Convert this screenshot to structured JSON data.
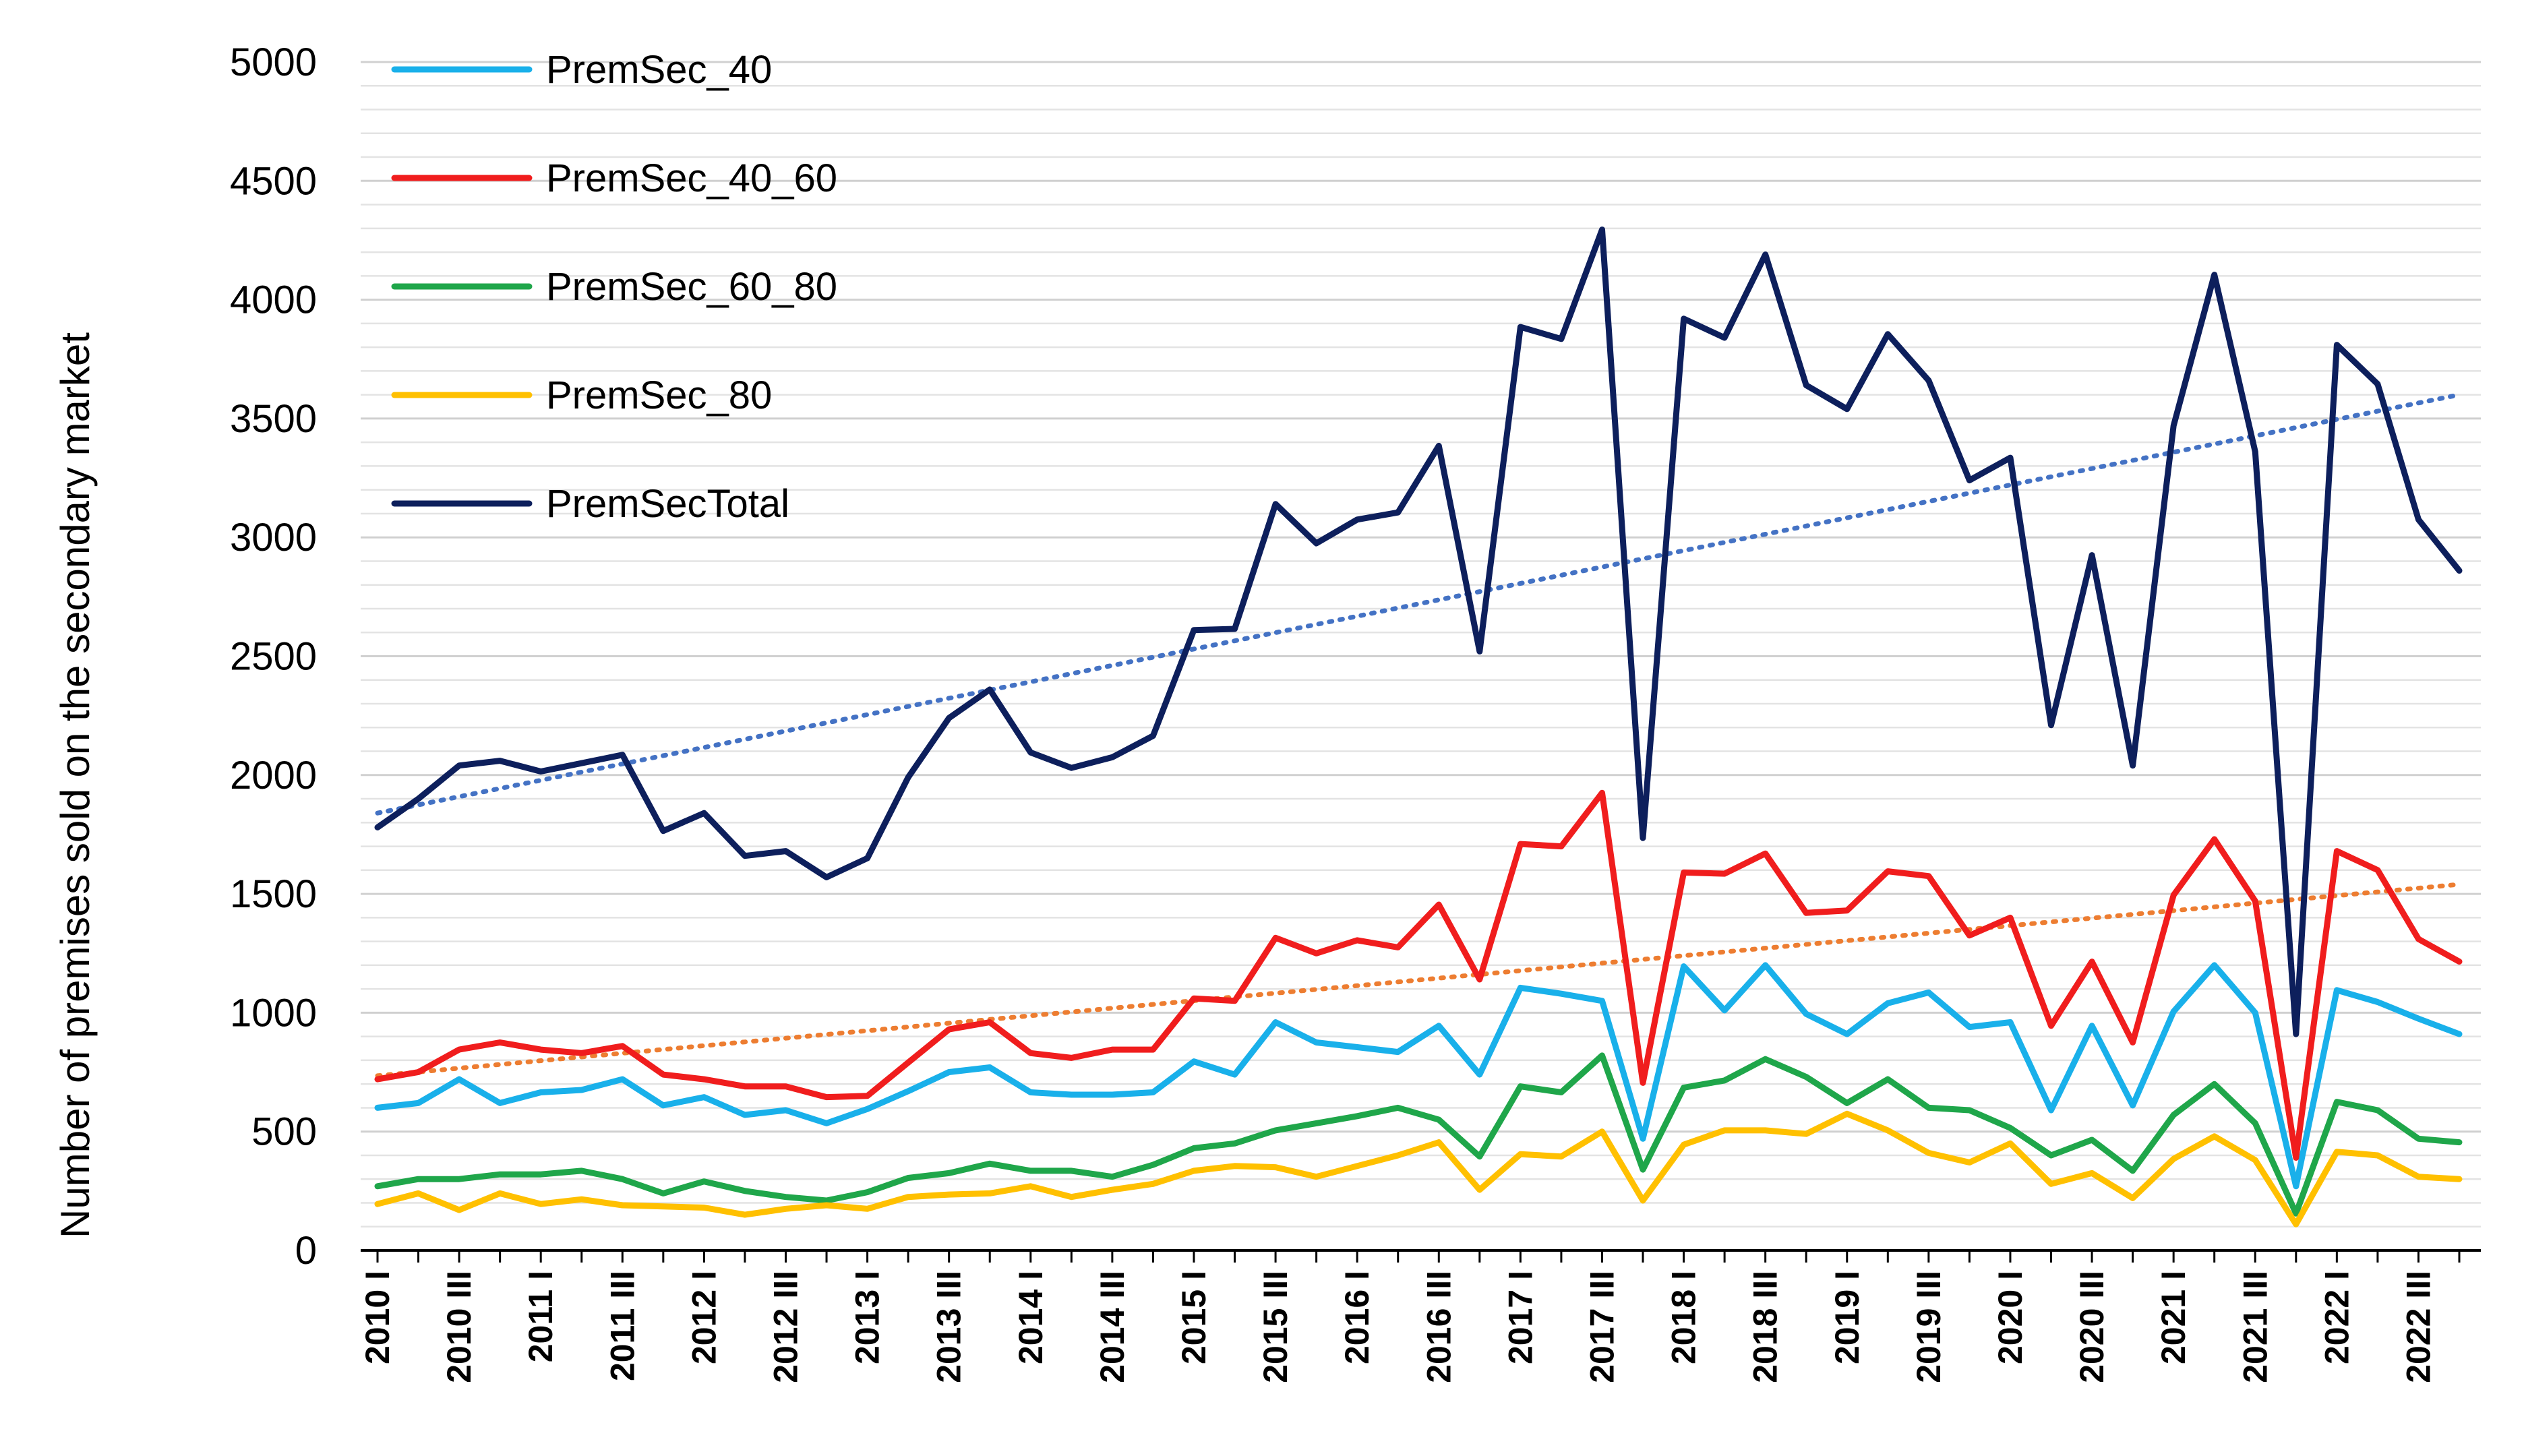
{
  "chart_data": {
    "type": "line",
    "title": "",
    "xlabel": "",
    "ylabel": "Number of premises sold on the secondary market",
    "ylim": [
      0,
      5000
    ],
    "ytick_values": [
      0,
      500,
      1000,
      1500,
      2000,
      2500,
      3000,
      3500,
      4000,
      4500,
      5000
    ],
    "grid": true,
    "legend_position": "top-left",
    "x": [
      "2010 I",
      "2010 II",
      "2010 III",
      "2010 IV",
      "2011 I",
      "2011 II",
      "2011 III",
      "2011 IV",
      "2012 I",
      "2012 II",
      "2012 III",
      "2012 IV",
      "2013 I",
      "2013 II",
      "2013 III",
      "2013 IV",
      "2014 I",
      "2014 II",
      "2014 III",
      "2014 IV",
      "2015 I",
      "2015 II",
      "2015 III",
      "2015 IV",
      "2016 I",
      "2016 II",
      "2016 III",
      "2016 IV",
      "2017 I",
      "2017 II",
      "2017 III",
      "2017 IV",
      "2018 I",
      "2018 II",
      "2018 III",
      "2018 IV",
      "2019 I",
      "2019 II",
      "2019 III",
      "2019 IV",
      "2020 I",
      "2020 II",
      "2020 III",
      "2020 IV",
      "2021 I",
      "2021 II",
      "2021 III",
      "2021 IV",
      "2022 I",
      "2022 II",
      "2022 III",
      "2022 IV"
    ],
    "tick_labels": [
      "2010 I",
      "2010 III",
      "2011 I",
      "2011 III",
      "2012 I",
      "2012 III",
      "2013 I",
      "2013 III",
      "2014 I",
      "2014 III",
      "2015 I",
      "2015 III",
      "2016 I",
      "2016 III",
      "2017 I",
      "2017 III",
      "2018 I",
      "2018 III",
      "2019 I",
      "2019 III",
      "2020 I",
      "2020 III",
      "2021 I",
      "2021 III",
      "2022 I",
      "2022 III"
    ],
    "series": [
      {
        "name": "PremSec_40",
        "color": "#19B0EA",
        "values": [
          600,
          620,
          720,
          620,
          665,
          675,
          720,
          610,
          645,
          570,
          590,
          535,
          595,
          670,
          750,
          770,
          665,
          655,
          655,
          665,
          795,
          740,
          960,
          875,
          855,
          835,
          945,
          740,
          1105,
          1080,
          1050,
          470,
          1195,
          1010,
          1200,
          995,
          910,
          1040,
          1085,
          940,
          960,
          590,
          945,
          610,
          1005,
          1200,
          1000,
          270,
          1095,
          1045,
          975,
          910
        ]
      },
      {
        "name": "PremSec_40_60",
        "color": "#F01D1D",
        "values": [
          720,
          750,
          845,
          875,
          845,
          830,
          860,
          740,
          720,
          690,
          690,
          645,
          650,
          790,
          930,
          960,
          830,
          810,
          845,
          845,
          1060,
          1050,
          1315,
          1250,
          1305,
          1275,
          1455,
          1140,
          1710,
          1700,
          1925,
          705,
          1590,
          1585,
          1670,
          1420,
          1430,
          1595,
          1575,
          1325,
          1400,
          945,
          1215,
          875,
          1495,
          1730,
          1470,
          390,
          1680,
          1600,
          1310,
          1215
        ]
      },
      {
        "name": "PremSec_60_80",
        "color": "#1FA64A",
        "values": [
          270,
          300,
          300,
          320,
          320,
          335,
          300,
          240,
          290,
          250,
          225,
          210,
          245,
          305,
          325,
          365,
          335,
          335,
          310,
          360,
          430,
          450,
          505,
          535,
          565,
          600,
          550,
          395,
          690,
          665,
          820,
          340,
          685,
          715,
          805,
          730,
          620,
          720,
          600,
          590,
          515,
          400,
          465,
          335,
          570,
          700,
          535,
          155,
          625,
          590,
          470,
          455
        ]
      },
      {
        "name": "PremSec_80",
        "color": "#FFC000",
        "values": [
          195,
          240,
          170,
          240,
          195,
          215,
          190,
          185,
          180,
          150,
          175,
          190,
          175,
          225,
          235,
          240,
          270,
          225,
          255,
          280,
          335,
          355,
          350,
          310,
          355,
          400,
          455,
          255,
          405,
          395,
          500,
          210,
          445,
          505,
          505,
          490,
          575,
          505,
          410,
          370,
          450,
          280,
          325,
          220,
          385,
          480,
          380,
          110,
          415,
          400,
          310,
          300
        ]
      },
      {
        "name": "PremSecTotal",
        "color": "#0D1F5C",
        "values": [
          1780,
          1900,
          2040,
          2060,
          2015,
          2050,
          2085,
          1765,
          1840,
          1660,
          1680,
          1570,
          1650,
          1990,
          2240,
          2360,
          2095,
          2030,
          2075,
          2165,
          2610,
          2615,
          3140,
          2975,
          3075,
          3105,
          3385,
          2520,
          3885,
          3835,
          4295,
          1735,
          3920,
          3840,
          4190,
          3640,
          3540,
          3855,
          3660,
          3240,
          3335,
          2210,
          2925,
          2040,
          3470,
          4105,
          3360,
          910,
          3810,
          3645,
          3075,
          2860
        ]
      }
    ],
    "trendlines": [
      {
        "name": "PremSecTotal trend",
        "color": "#4472C4",
        "start": 1840,
        "end": 3600
      },
      {
        "name": "PremSec_40_60 trend",
        "color": "#ED7D31",
        "start": 735,
        "end": 1540
      }
    ]
  }
}
